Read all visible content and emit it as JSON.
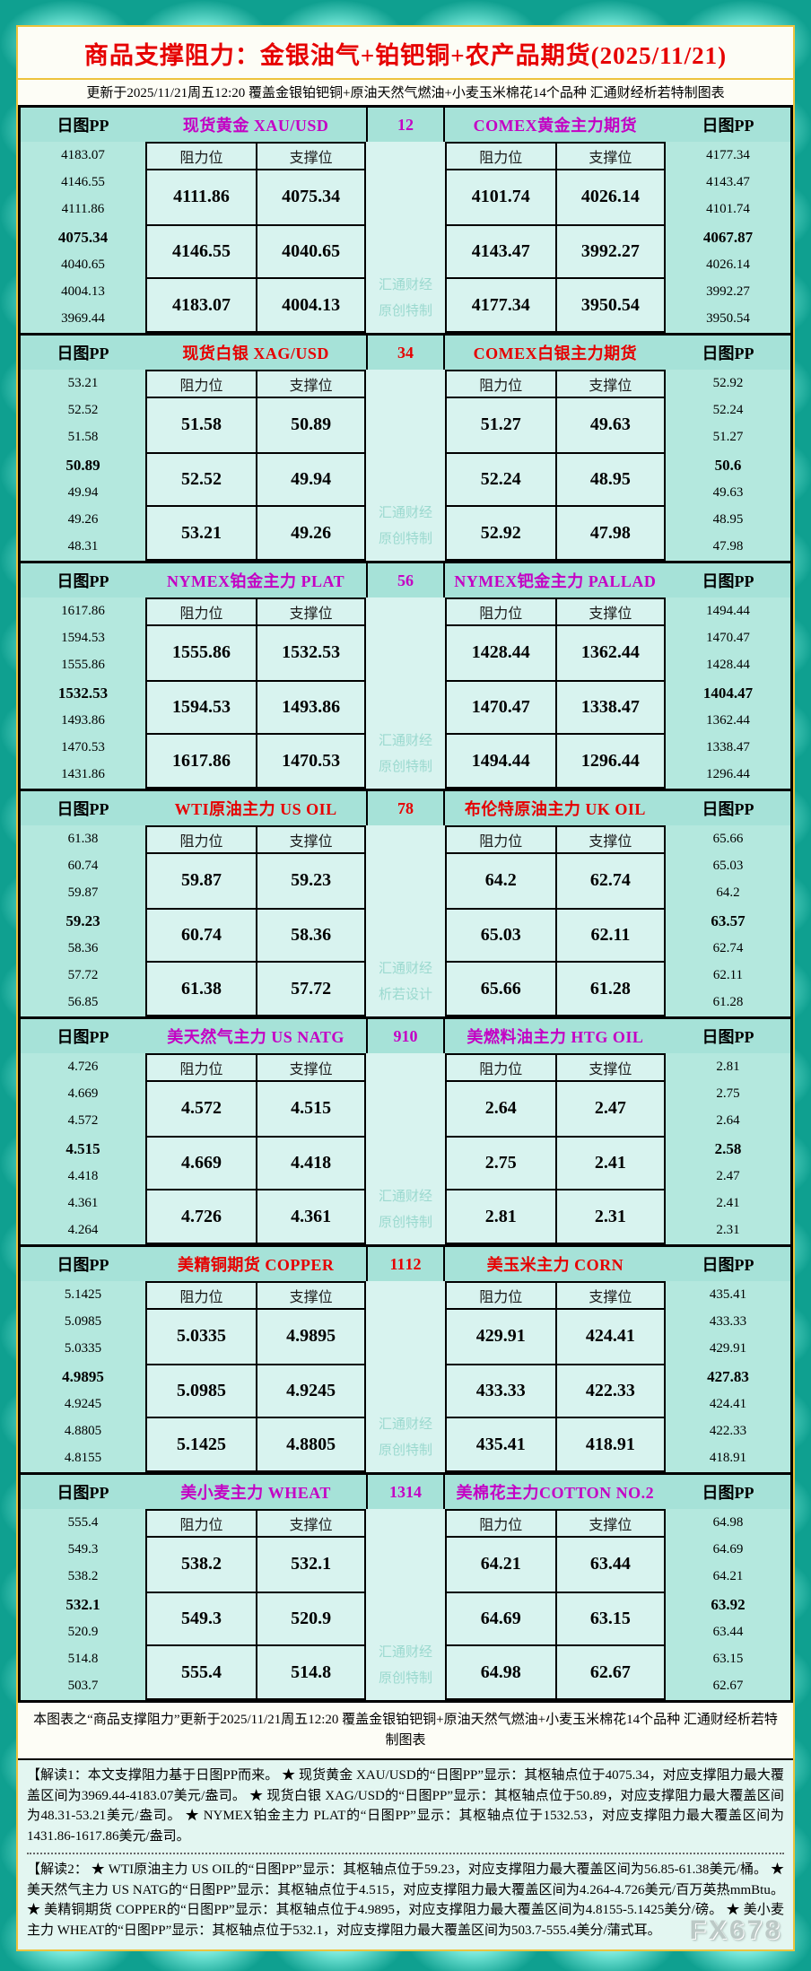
{
  "title": "商品支撑阻力：金银油气+铂钯铜+农产品期货(2025/11/21)",
  "subtitle": "更新于2025/11/21周五12:20 覆盖金银铂钯铜+原油天然气燃油+小麦玉米棉花14个品种 汇通财经析若特制图表",
  "labels": {
    "pp_header": "日图PP",
    "resistance": "阻力位",
    "support": "支撑位"
  },
  "colors": {
    "magenta": "#c400c4",
    "red": "#e60000",
    "gold_border": "#edc33c",
    "band_bg": "#a6e2d8",
    "cell_bg": "#d8f3ef",
    "watermark_text": "#9bd9cf"
  },
  "sections": [
    {
      "idx": [
        "1",
        "2"
      ],
      "accent": "magenta",
      "wm": [
        "汇通财经",
        "原创特制"
      ],
      "left": {
        "title": "现货黄金 XAU/USD",
        "pp": [
          "4183.07",
          "4146.55",
          "4111.86",
          "4075.34",
          "4040.65",
          "4004.13",
          "3969.44"
        ],
        "rows": [
          [
            "4111.86",
            "4075.34"
          ],
          [
            "4146.55",
            "4040.65"
          ],
          [
            "4183.07",
            "4004.13"
          ]
        ]
      },
      "right": {
        "title": "COMEX黄金主力期货",
        "pp": [
          "4177.34",
          "4143.47",
          "4101.74",
          "4067.87",
          "4026.14",
          "3992.27",
          "3950.54"
        ],
        "rows": [
          [
            "4101.74",
            "4026.14"
          ],
          [
            "4143.47",
            "3992.27"
          ],
          [
            "4177.34",
            "3950.54"
          ]
        ]
      }
    },
    {
      "idx": [
        "3",
        "4"
      ],
      "accent": "red",
      "wm": [
        "汇通财经",
        "原创特制"
      ],
      "left": {
        "title": "现货白银 XAG/USD",
        "pp": [
          "53.21",
          "52.52",
          "51.58",
          "50.89",
          "49.94",
          "49.26",
          "48.31"
        ],
        "rows": [
          [
            "51.58",
            "50.89"
          ],
          [
            "52.52",
            "49.94"
          ],
          [
            "53.21",
            "49.26"
          ]
        ]
      },
      "right": {
        "title": "COMEX白银主力期货",
        "pp": [
          "52.92",
          "52.24",
          "51.27",
          "50.6",
          "49.63",
          "48.95",
          "47.98"
        ],
        "rows": [
          [
            "51.27",
            "49.63"
          ],
          [
            "52.24",
            "48.95"
          ],
          [
            "52.92",
            "47.98"
          ]
        ]
      }
    },
    {
      "idx": [
        "5",
        "6"
      ],
      "accent": "magenta",
      "wm": [
        "汇通财经",
        "原创特制"
      ],
      "left": {
        "title": "NYMEX铂金主力 PLAT",
        "pp": [
          "1617.86",
          "1594.53",
          "1555.86",
          "1532.53",
          "1493.86",
          "1470.53",
          "1431.86"
        ],
        "rows": [
          [
            "1555.86",
            "1532.53"
          ],
          [
            "1594.53",
            "1493.86"
          ],
          [
            "1617.86",
            "1470.53"
          ]
        ]
      },
      "right": {
        "title": "NYMEX钯金主力 PALLAD",
        "pp": [
          "1494.44",
          "1470.47",
          "1428.44",
          "1404.47",
          "1362.44",
          "1338.47",
          "1296.44"
        ],
        "rows": [
          [
            "1428.44",
            "1362.44"
          ],
          [
            "1470.47",
            "1338.47"
          ],
          [
            "1494.44",
            "1296.44"
          ]
        ]
      }
    },
    {
      "idx": [
        "7",
        "8"
      ],
      "accent": "red",
      "wm": [
        "汇通财经",
        "析若设计"
      ],
      "left": {
        "title": "WTI原油主力 US OIL",
        "pp": [
          "61.38",
          "60.74",
          "59.87",
          "59.23",
          "58.36",
          "57.72",
          "56.85"
        ],
        "rows": [
          [
            "59.87",
            "59.23"
          ],
          [
            "60.74",
            "58.36"
          ],
          [
            "61.38",
            "57.72"
          ]
        ]
      },
      "right": {
        "title": "布伦特原油主力 UK OIL",
        "pp": [
          "65.66",
          "65.03",
          "64.2",
          "63.57",
          "62.74",
          "62.11",
          "61.28"
        ],
        "rows": [
          [
            "64.2",
            "62.74"
          ],
          [
            "65.03",
            "62.11"
          ],
          [
            "65.66",
            "61.28"
          ]
        ]
      }
    },
    {
      "idx": [
        "9",
        "10"
      ],
      "accent": "magenta",
      "wm": [
        "汇通财经",
        "原创特制"
      ],
      "left": {
        "title": "美天然气主力 US NATG",
        "pp": [
          "4.726",
          "4.669",
          "4.572",
          "4.515",
          "4.418",
          "4.361",
          "4.264"
        ],
        "rows": [
          [
            "4.572",
            "4.515"
          ],
          [
            "4.669",
            "4.418"
          ],
          [
            "4.726",
            "4.361"
          ]
        ]
      },
      "right": {
        "title": "美燃料油主力 HTG OIL",
        "pp": [
          "2.81",
          "2.75",
          "2.64",
          "2.58",
          "2.47",
          "2.41",
          "2.31"
        ],
        "rows": [
          [
            "2.64",
            "2.47"
          ],
          [
            "2.75",
            "2.41"
          ],
          [
            "2.81",
            "2.31"
          ]
        ]
      }
    },
    {
      "idx": [
        "11",
        "12"
      ],
      "accent": "red",
      "wm": [
        "汇通财经",
        "原创特制"
      ],
      "left": {
        "title": "美精铜期货 COPPER",
        "pp": [
          "5.1425",
          "5.0985",
          "5.0335",
          "4.9895",
          "4.9245",
          "4.8805",
          "4.8155"
        ],
        "rows": [
          [
            "5.0335",
            "4.9895"
          ],
          [
            "5.0985",
            "4.9245"
          ],
          [
            "5.1425",
            "4.8805"
          ]
        ]
      },
      "right": {
        "title": "美玉米主力 CORN",
        "pp": [
          "435.41",
          "433.33",
          "429.91",
          "427.83",
          "424.41",
          "422.33",
          "418.91"
        ],
        "rows": [
          [
            "429.91",
            "424.41"
          ],
          [
            "433.33",
            "422.33"
          ],
          [
            "435.41",
            "418.91"
          ]
        ]
      }
    },
    {
      "idx": [
        "13",
        "14"
      ],
      "accent": "magenta",
      "wm": [
        "汇通财经",
        "原创特制"
      ],
      "left": {
        "title": "美小麦主力 WHEAT",
        "pp": [
          "555.4",
          "549.3",
          "538.2",
          "532.1",
          "520.9",
          "514.8",
          "503.7"
        ],
        "rows": [
          [
            "538.2",
            "532.1"
          ],
          [
            "549.3",
            "520.9"
          ],
          [
            "555.4",
            "514.8"
          ]
        ]
      },
      "right": {
        "title": "美棉花主力COTTON NO.2",
        "pp": [
          "64.98",
          "64.69",
          "64.21",
          "63.92",
          "63.44",
          "63.15",
          "62.67"
        ],
        "rows": [
          [
            "64.21",
            "63.44"
          ],
          [
            "64.69",
            "63.15"
          ],
          [
            "64.98",
            "62.67"
          ]
        ]
      }
    }
  ],
  "footer_note": "本图表之“商品支撑阻力”更新于2025/11/21周五12:20 覆盖金银铂钯铜+原油天然气燃油+小麦玉米棉花14个品种 汇通财经析若特制图表",
  "interpretations": [
    "【解读1：本文支撑阻力基于日图PP而来。 ★ 现货黄金 XAU/USD的“日图PP”显示：其枢轴点位于4075.34，对应支撑阻力最大覆盖区间为3969.44-4183.07美元/盎司。 ★ 现货白银 XAG/USD的“日图PP”显示：其枢轴点位于50.89，对应支撑阻力最大覆盖区间为48.31-53.21美元/盎司。 ★ NYMEX铂金主力 PLAT的“日图PP”显示：其枢轴点位于1532.53，对应支撑阻力最大覆盖区间为1431.86-1617.86美元/盎司。",
    "【解读2： ★ WTI原油主力 US OIL的“日图PP”显示：其枢轴点位于59.23，对应支撑阻力最大覆盖区间为56.85-61.38美元/桶。 ★ 美天然气主力 US NATG的“日图PP”显示：其枢轴点位于4.515，对应支撑阻力最大覆盖区间为4.264-4.726美元/百万英热mmBtu。 ★ 美精铜期货 COPPER的“日图PP”显示：其枢轴点位于4.9895，对应支撑阻力最大覆盖区间为4.8155-5.1425美分/磅。 ★ 美小麦主力 WHEAT的“日图PP”显示：其枢轴点位于532.1，对应支撑阻力最大覆盖区间为503.7-555.4美分/蒲式耳。"
  ],
  "brand": "FX678",
  "chart_data": {
    "type": "table",
    "title": "商品支撑阻力：金银油气+铂钯铜+农产品期货(2025/11/21)",
    "updated": "2025/11/21 周五12:20",
    "columns": [
      "日图PP",
      "阻力位",
      "支撑位"
    ],
    "instruments": [
      {
        "no": 1,
        "name": "现货黄金 XAU/USD",
        "pivot": 4075.34,
        "pp_levels": [
          4183.07,
          4146.55,
          4111.86,
          4075.34,
          4040.65,
          4004.13,
          3969.44
        ],
        "resistance": [
          4111.86,
          4146.55,
          4183.07
        ],
        "support": [
          4075.34,
          4040.65,
          4004.13
        ]
      },
      {
        "no": 2,
        "name": "COMEX黄金主力期货",
        "pivot": 4067.87,
        "pp_levels": [
          4177.34,
          4143.47,
          4101.74,
          4067.87,
          4026.14,
          3992.27,
          3950.54
        ],
        "resistance": [
          4101.74,
          4143.47,
          4177.34
        ],
        "support": [
          4026.14,
          3992.27,
          3950.54
        ]
      },
      {
        "no": 3,
        "name": "现货白银 XAG/USD",
        "pivot": 50.89,
        "pp_levels": [
          53.21,
          52.52,
          51.58,
          50.89,
          49.94,
          49.26,
          48.31
        ],
        "resistance": [
          51.58,
          52.52,
          53.21
        ],
        "support": [
          50.89,
          49.94,
          49.26
        ]
      },
      {
        "no": 4,
        "name": "COMEX白银主力期货",
        "pivot": 50.6,
        "pp_levels": [
          52.92,
          52.24,
          51.27,
          50.6,
          49.63,
          48.95,
          47.98
        ],
        "resistance": [
          51.27,
          52.24,
          52.92
        ],
        "support": [
          49.63,
          48.95,
          47.98
        ]
      },
      {
        "no": 5,
        "name": "NYMEX铂金主力 PLAT",
        "pivot": 1532.53,
        "pp_levels": [
          1617.86,
          1594.53,
          1555.86,
          1532.53,
          1493.86,
          1470.53,
          1431.86
        ],
        "resistance": [
          1555.86,
          1594.53,
          1617.86
        ],
        "support": [
          1532.53,
          1493.86,
          1470.53
        ]
      },
      {
        "no": 6,
        "name": "NYMEX钯金主力 PALLAD",
        "pivot": 1404.47,
        "pp_levels": [
          1494.44,
          1470.47,
          1428.44,
          1404.47,
          1362.44,
          1338.47,
          1296.44
        ],
        "resistance": [
          1428.44,
          1470.47,
          1494.44
        ],
        "support": [
          1362.44,
          1338.47,
          1296.44
        ]
      },
      {
        "no": 7,
        "name": "WTI原油主力 US OIL",
        "pivot": 59.23,
        "pp_levels": [
          61.38,
          60.74,
          59.87,
          59.23,
          58.36,
          57.72,
          56.85
        ],
        "resistance": [
          59.87,
          60.74,
          61.38
        ],
        "support": [
          59.23,
          58.36,
          57.72
        ]
      },
      {
        "no": 8,
        "name": "布伦特原油主力 UK OIL",
        "pivot": 63.57,
        "pp_levels": [
          65.66,
          65.03,
          64.2,
          63.57,
          62.74,
          62.11,
          61.28
        ],
        "resistance": [
          64.2,
          65.03,
          65.66
        ],
        "support": [
          62.74,
          62.11,
          61.28
        ]
      },
      {
        "no": 9,
        "name": "美天然气主力 US NATG",
        "pivot": 4.515,
        "pp_levels": [
          4.726,
          4.669,
          4.572,
          4.515,
          4.418,
          4.361,
          4.264
        ],
        "resistance": [
          4.572,
          4.669,
          4.726
        ],
        "support": [
          4.515,
          4.418,
          4.361
        ]
      },
      {
        "no": 10,
        "name": "美燃料油主力 HTG OIL",
        "pivot": 2.58,
        "pp_levels": [
          2.81,
          2.75,
          2.64,
          2.58,
          2.47,
          2.41,
          2.31
        ],
        "resistance": [
          2.64,
          2.75,
          2.81
        ],
        "support": [
          2.47,
          2.41,
          2.31
        ]
      },
      {
        "no": 11,
        "name": "美精铜期货 COPPER",
        "pivot": 4.9895,
        "pp_levels": [
          5.1425,
          5.0985,
          5.0335,
          4.9895,
          4.9245,
          4.8805,
          4.8155
        ],
        "resistance": [
          5.0335,
          5.0985,
          5.1425
        ],
        "support": [
          4.9895,
          4.9245,
          4.8805
        ]
      },
      {
        "no": 12,
        "name": "美玉米主力 CORN",
        "pivot": 427.83,
        "pp_levels": [
          435.41,
          433.33,
          429.91,
          427.83,
          424.41,
          422.33,
          418.91
        ],
        "resistance": [
          429.91,
          433.33,
          435.41
        ],
        "support": [
          424.41,
          422.33,
          418.91
        ]
      },
      {
        "no": 13,
        "name": "美小麦主力 WHEAT",
        "pivot": 532.1,
        "pp_levels": [
          555.4,
          549.3,
          538.2,
          532.1,
          520.9,
          514.8,
          503.7
        ],
        "resistance": [
          538.2,
          549.3,
          555.4
        ],
        "support": [
          532.1,
          520.9,
          514.8
        ]
      },
      {
        "no": 14,
        "name": "美棉花主力COTTON NO.2",
        "pivot": 63.92,
        "pp_levels": [
          64.98,
          64.69,
          64.21,
          63.92,
          63.44,
          63.15,
          62.67
        ],
        "resistance": [
          64.21,
          64.69,
          64.98
        ],
        "support": [
          63.44,
          63.15,
          62.67
        ]
      }
    ]
  }
}
